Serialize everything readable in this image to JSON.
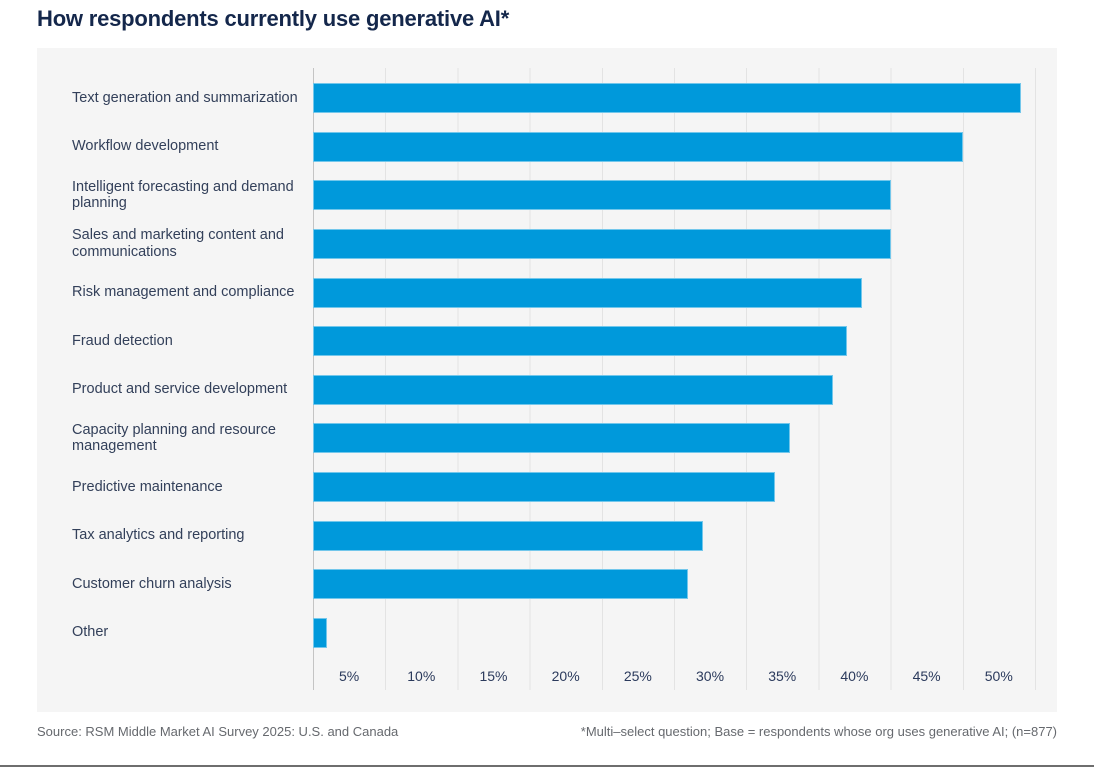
{
  "title": "How respondents currently use generative AI*",
  "chart_data": {
    "type": "bar",
    "orientation": "horizontal",
    "title": "How respondents currently use generative AI*",
    "categories": [
      "Text generation and summarization",
      "Workflow development",
      "Intelligent forecasting and demand planning",
      "Sales and marketing content and communications",
      "Risk management and compliance",
      "Fraud detection",
      "Product and service development",
      "Capacity planning and resource management",
      "Predictive maintenance",
      "Tax analytics and reporting",
      "Customer churn analysis",
      "Other"
    ],
    "values": [
      49,
      45,
      40,
      40,
      38,
      37,
      36,
      33,
      32,
      27,
      26,
      1
    ],
    "unit": "%",
    "xlim": [
      0,
      50
    ],
    "x_ticks": [
      "5%",
      "10%",
      "15%",
      "20%",
      "25%",
      "30%",
      "35%",
      "40%",
      "45%",
      "50%"
    ],
    "grid": true,
    "legend": false,
    "bar_color": "#0099DB"
  },
  "colors": {
    "title_navy": "#14274B",
    "bar_blue": "#0099DB",
    "panel_background": "#F5F5F5",
    "gridline": "#E3E3E3",
    "axis_line": "#C4C4C4",
    "footer_gray": "#66696E"
  },
  "footer": {
    "source": "Source: RSM Middle Market AI Survey 2025: U.S. and Canada",
    "note": "*Multi–select question; Base = respondents whose org uses generative AI; (n=877)"
  }
}
